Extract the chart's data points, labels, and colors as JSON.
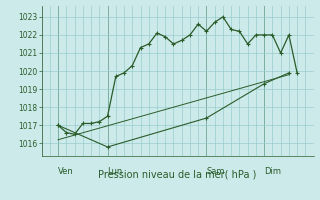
{
  "xlabel": "Pression niveau de la mer( hPa )",
  "bg_color": "#cceaea",
  "grid_color": "#99cccc",
  "line_color": "#2a5c2a",
  "ylim": [
    1015.3,
    1023.6
  ],
  "yticks": [
    1016,
    1017,
    1018,
    1019,
    1020,
    1021,
    1022,
    1023
  ],
  "day_labels": [
    "Ven",
    "Lun",
    "Sam",
    "Dim"
  ],
  "day_positions": [
    2,
    8,
    20,
    27
  ],
  "vline_positions": [
    2,
    8,
    20,
    27
  ],
  "xlim": [
    0,
    33
  ],
  "series1_x": [
    2,
    3,
    4,
    5,
    6,
    7,
    8,
    9,
    10,
    11,
    12,
    13,
    14,
    15,
    16,
    17,
    18,
    19,
    20,
    21,
    22,
    23,
    24,
    25,
    26,
    27,
    28,
    29,
    30,
    31
  ],
  "series1_y": [
    1017.0,
    1016.6,
    1016.5,
    1017.1,
    1017.1,
    1017.2,
    1017.5,
    1019.7,
    1019.9,
    1020.3,
    1021.3,
    1021.5,
    1022.1,
    1021.9,
    1021.5,
    1021.7,
    1022.0,
    1022.6,
    1022.2,
    1022.7,
    1023.0,
    1022.3,
    1022.2,
    1021.5,
    1022.0,
    1022.0,
    1022.0,
    1021.0,
    1022.0,
    1019.9
  ],
  "series2_x": [
    2,
    8,
    20,
    27,
    30
  ],
  "series2_y": [
    1017.0,
    1015.8,
    1017.4,
    1019.3,
    1019.9
  ],
  "series3_x": [
    2,
    30
  ],
  "series3_y": [
    1016.2,
    1019.8
  ]
}
